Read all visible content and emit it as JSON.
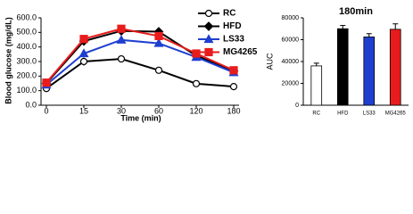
{
  "chart_data": [
    {
      "type": "line",
      "y_label": "Blood glucose (mg/dL)",
      "x_label": "Time (min)",
      "categories": [
        "0",
        "15",
        "30",
        "60",
        "120",
        "180"
      ],
      "ylim": [
        0,
        600
      ],
      "yticks": [
        {
          "value": 0,
          "label": "0.0"
        },
        {
          "value": 100,
          "label": "100.0"
        },
        {
          "value": 200,
          "label": "200.0"
        },
        {
          "value": 300,
          "label": "300.0"
        },
        {
          "value": 400,
          "label": "400.0"
        },
        {
          "value": 500,
          "label": "500.0"
        },
        {
          "value": 600,
          "label": "600.0"
        }
      ],
      "series": [
        {
          "name": "RC",
          "color": "#000000",
          "marker": "circle",
          "values": [
            115,
            300,
            318,
            240,
            148,
            128
          ],
          "errors": [
            12,
            28,
            15,
            8,
            8,
            8
          ]
        },
        {
          "name": "HFD",
          "color": "#000000",
          "marker": "diamond",
          "values": [
            150,
            440,
            510,
            505,
            340,
            235
          ],
          "errors": [
            10,
            15,
            12,
            12,
            10,
            10
          ]
        },
        {
          "name": "LS33",
          "color": "#1f3fcf",
          "marker": "triangle",
          "values": [
            140,
            355,
            448,
            425,
            330,
            225
          ],
          "errors": [
            10,
            15,
            12,
            10,
            10,
            10
          ]
        },
        {
          "name": "MG4265",
          "color": "#e81c1c",
          "marker": "square",
          "values": [
            155,
            455,
            525,
            475,
            355,
            240
          ],
          "errors": [
            10,
            15,
            12,
            12,
            10,
            10
          ]
        }
      ]
    },
    {
      "type": "bar",
      "title": "180min",
      "y_label": "AUC",
      "categories": [
        "RC",
        "HFD",
        "LS33",
        "MG4265"
      ],
      "values": [
        36000,
        70000,
        62500,
        69500
      ],
      "errors": [
        2500,
        3000,
        3000,
        5000
      ],
      "colors": [
        "#ffffff",
        "#000000",
        "#1f3fcf",
        "#e81c1c"
      ],
      "ylim": [
        0,
        80000
      ],
      "yticks": [
        0,
        20000,
        40000,
        60000,
        80000
      ]
    }
  ]
}
